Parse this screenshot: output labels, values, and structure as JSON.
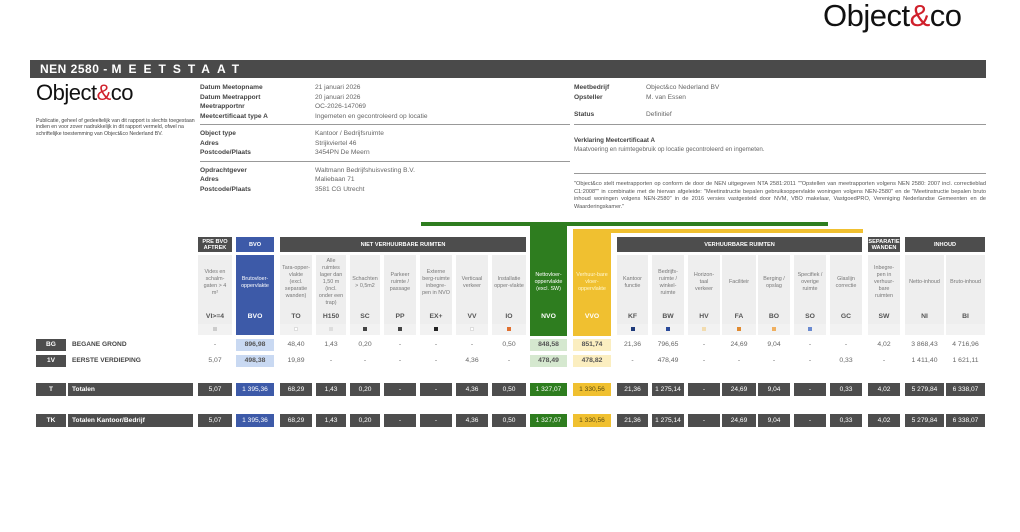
{
  "brand": {
    "logo_text": "Object&co",
    "logo_prefix": "Object",
    "logo_amp": "&",
    "logo_suffix": "co"
  },
  "header": {
    "title_prefix": "NEN 2580  - ",
    "title_spaced": "MEETSTAAT"
  },
  "disclaimer": "Publicatie, geheel of gedeeltelijk van dit rapport is slechts toegestaan indien en voor zover nadrukkelijk in dit rapport vermeld, ofwel na schriftelijke toestemming van Object&co Nederland BV.",
  "info_left": [
    [
      {
        "k": "Datum Meetopname",
        "v": "21 januari 2026"
      },
      {
        "k": "Datum Meetrapport",
        "v": "20 januari 2026"
      },
      {
        "k": "Meetrapportnr",
        "v": "OC-2026-147069"
      },
      {
        "k": "Meetcertificaat type A",
        "v": "Ingemeten en gecontroleerd op locatie"
      }
    ],
    [
      {
        "k": "Object type",
        "v": "Kantoor / Bedrijfsruimte"
      },
      {
        "k": "Adres",
        "v": "Strijkviertel 46"
      },
      {
        "k": "Postcode/Plaats",
        "v": "3454PN De Meern"
      }
    ],
    [
      {
        "k": "Opdrachtgever",
        "v": "Waltmann Bedrijfshuisvesting B.V."
      },
      {
        "k": "Adres",
        "v": "Maliebaan 71"
      },
      {
        "k": "Postcode/Plaats",
        "v": "3581 CG Utrecht"
      }
    ]
  ],
  "info_right": [
    {
      "k": "Meetbedrijf",
      "v": "Object&co Nederland BV"
    },
    {
      "k": "Opsteller",
      "v": "M. van Essen"
    },
    {
      "k": "Status",
      "v": "Definitief"
    }
  ],
  "verklaring": {
    "title": "Verklaring Meetcertificaat A",
    "text": "Maatvoering en ruimtegebruik op locatie gecontroleerd en ingemeten."
  },
  "note": "\"Object&co stelt meetrapporten op conform de door de NEN uitgegeven NTA 2581:2011 \"\"Opstellen van meetrapporten volgens NEN 2580: 2007 incl. correctieblad C1:2008\"\" in combinatie met de hiervan afgeleide: \"Meetinstructie bepalen gebruiksoppervlakte woningen volgens NEN-2580\" en de \"Meetinstructie bepalen bruto inhoud woningen volgens NEN-2580\" in de 2016 versies vastgesteld door NVM, VBO makelaar, VastgoedPRO, Vereniging Nederlandse Gemeenten en de Waarderingskamer.\"",
  "colors": {
    "dark": "#4d4d4d",
    "bvo": "#3d5aa8",
    "nvo": "#2e7d1f",
    "vvo": "#f0c030"
  },
  "groups": [
    {
      "label": "PRE BVO AFTREK"
    },
    {
      "label": "BVO"
    },
    {
      "label": "NIET VERHUURBARE RUIMTEN"
    },
    {
      "label": "VERHUURBARE RUIMTEN"
    },
    {
      "label": "SEPARATIE WANDEN"
    },
    {
      "label": "INHOUD"
    }
  ],
  "columns": [
    {
      "code": "VI>=4",
      "desc": "Vides en schalm-gaten > 4 m²",
      "dot": "#cccccc"
    },
    {
      "code": "BVO",
      "desc": "Brutovloer-oppervlakte",
      "dot": ""
    },
    {
      "code": "TO",
      "desc": "Tara-opper-vlakte (excl. separatie wanden)",
      "dot": "#ffffff"
    },
    {
      "code": "H150",
      "desc": "Alle ruimtes lager dan 1,50 m (incl. onder een trap)",
      "dot": "#dddddd"
    },
    {
      "code": "SC",
      "desc": "Schachten > 0,5m2",
      "dot": "#444444"
    },
    {
      "code": "PP",
      "desc": "Parkeer ruimte / passage",
      "dot": "#444444"
    },
    {
      "code": "EX+",
      "desc": "Externe berg-ruimte inbegre-pen in NVO",
      "dot": "#222222"
    },
    {
      "code": "VV",
      "desc": "Verticaal verkeer",
      "dot": "#ffffff"
    },
    {
      "code": "IO",
      "desc": "Installatie opper-vlakte",
      "dot": "#e07030"
    },
    {
      "code": "NVO",
      "desc": "Nettovloer-oppervlakte (excl. SW)",
      "dot": ""
    },
    {
      "code": "VVO",
      "desc": "Verhuur-bare vloer-oppervlakte",
      "dot": ""
    },
    {
      "code": "KF",
      "desc": "Kantoor functie",
      "dot": "#1f3a7a"
    },
    {
      "code": "BW",
      "desc": "Bedrijfs-ruimte / winkel-ruimte",
      "dot": "#2a4a9a"
    },
    {
      "code": "HV",
      "desc": "Horizon-taal verkeer",
      "dot": "#f2dcb0"
    },
    {
      "code": "FA",
      "desc": "Faciliteir",
      "dot": "#e08a30"
    },
    {
      "code": "BO",
      "desc": "Berging / opslag",
      "dot": "#f0b060"
    },
    {
      "code": "SO",
      "desc": "Specifiek / overige ruimte",
      "dot": "#6a8ad0"
    },
    {
      "code": "GC",
      "desc": "Glaslijn correctie",
      "dot": ""
    },
    {
      "code": "SW",
      "desc": "Inbegre-pen in verhuur-bare ruimten",
      "dot": ""
    },
    {
      "code": "NI",
      "desc": "Netto-inhoud",
      "dot": ""
    },
    {
      "code": "BI",
      "desc": "Bruto-inhoud",
      "dot": ""
    }
  ],
  "rows": [
    {
      "code": "BG",
      "label": "BEGANE GROND",
      "values": [
        "-",
        "896,98",
        "48,40",
        "1,43",
        "0,20",
        "-",
        "-",
        "-",
        "0,50",
        "848,58",
        "851,74",
        "21,36",
        "796,65",
        "-",
        "24,69",
        "9,04",
        "-",
        "-",
        "4,02",
        "3 868,43",
        "4 716,96"
      ]
    },
    {
      "code": "1V",
      "label": "EERSTE VERDIEPING",
      "values": [
        "5,07",
        "498,38",
        "19,89",
        "-",
        "-",
        "-",
        "-",
        "4,36",
        "-",
        "478,49",
        "478,82",
        "-",
        "478,49",
        "-",
        "-",
        "-",
        "-",
        "0,33",
        "-",
        "1 411,40",
        "1 621,11"
      ]
    }
  ],
  "totals": [
    {
      "code": "T",
      "label": "Totalen",
      "values": [
        "5,07",
        "1 395,36",
        "68,29",
        "1,43",
        "0,20",
        "-",
        "-",
        "4,36",
        "0,50",
        "1 327,07",
        "1 330,56",
        "21,36",
        "1 275,14",
        "-",
        "24,69",
        "9,04",
        "-",
        "0,33",
        "4,02",
        "5 279,84",
        "6 338,07"
      ]
    },
    {
      "code": "TK",
      "label": "Totalen Kantoor/Bedrijf",
      "values": [
        "5,07",
        "1 395,36",
        "68,29",
        "1,43",
        "0,20",
        "-",
        "-",
        "4,36",
        "0,50",
        "1 327,07",
        "1 330,56",
        "21,36",
        "1 275,14",
        "-",
        "24,69",
        "9,04",
        "-",
        "0,33",
        "4,02",
        "5 279,84",
        "6 338,07"
      ]
    }
  ]
}
